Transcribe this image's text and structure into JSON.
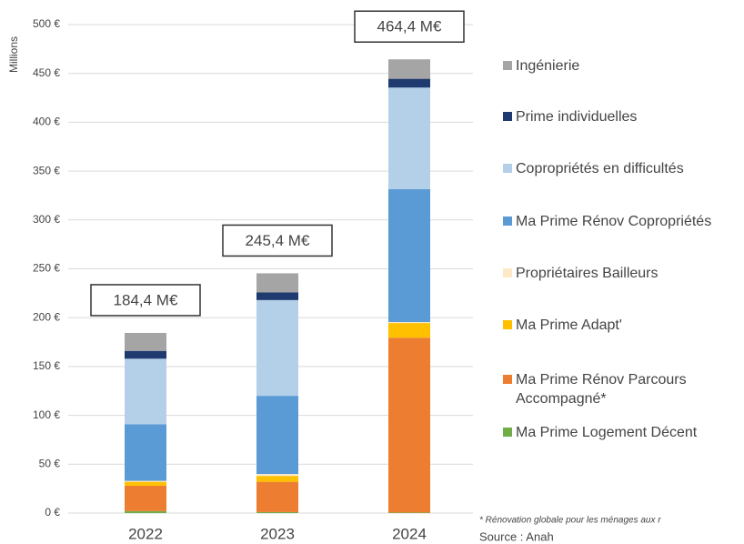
{
  "chart_data": {
    "type": "stacked_bar",
    "ylabel": "Millions",
    "categories": [
      "2022",
      "2023",
      "2024"
    ],
    "series": [
      {
        "name": "Ma Prime Logement Décent",
        "color": "#70ad47",
        "values": [
          2,
          1,
          0.5
        ]
      },
      {
        "name": "Ma Prime Rénov Parcours Accompagné*",
        "color": "#ed7d31",
        "values": [
          26,
          31,
          179
        ]
      },
      {
        "name": "Ma Prime Adapt'",
        "color": "#ffc000",
        "values": [
          4,
          6,
          15
        ]
      },
      {
        "name": "Propriétaires Bailleurs",
        "color": "#fde9c8",
        "values": [
          1,
          2,
          1
        ]
      },
      {
        "name": "Ma Prime Rénov Copropriétés",
        "color": "#5b9bd5",
        "values": [
          58,
          80,
          136
        ]
      },
      {
        "name": "Copropriétés en difficultés",
        "color": "#b4cfe8",
        "values": [
          67,
          98,
          104
        ]
      },
      {
        "name": "Prime individuelles",
        "color": "#1f3a6e",
        "values": [
          8,
          8,
          9
        ]
      },
      {
        "name": "Ingénierie",
        "color": "#a5a5a5",
        "values": [
          18.4,
          19.4,
          19.9
        ]
      }
    ],
    "annotations": [
      "184,4 M€",
      "245,4 M€",
      "464,4 M€"
    ],
    "ylim": [
      0,
      500
    ],
    "yticks": [
      {
        "value": 0,
        "label": "0 €"
      },
      {
        "value": 50,
        "label": "50 €"
      },
      {
        "value": 100,
        "label": "100 €"
      },
      {
        "value": 150,
        "label": "150 €"
      },
      {
        "value": 200,
        "label": "200 €"
      },
      {
        "value": 250,
        "label": "250 €"
      },
      {
        "value": 300,
        "label": "300 €"
      },
      {
        "value": 350,
        "label": "350 €"
      },
      {
        "value": 400,
        "label": "400 €"
      },
      {
        "value": 450,
        "label": "450 €"
      },
      {
        "value": 500,
        "label": "500 €"
      }
    ],
    "grid": true,
    "footnote": "* Rénovation globale pour les ménages aux r",
    "source": "Source : Anah"
  }
}
